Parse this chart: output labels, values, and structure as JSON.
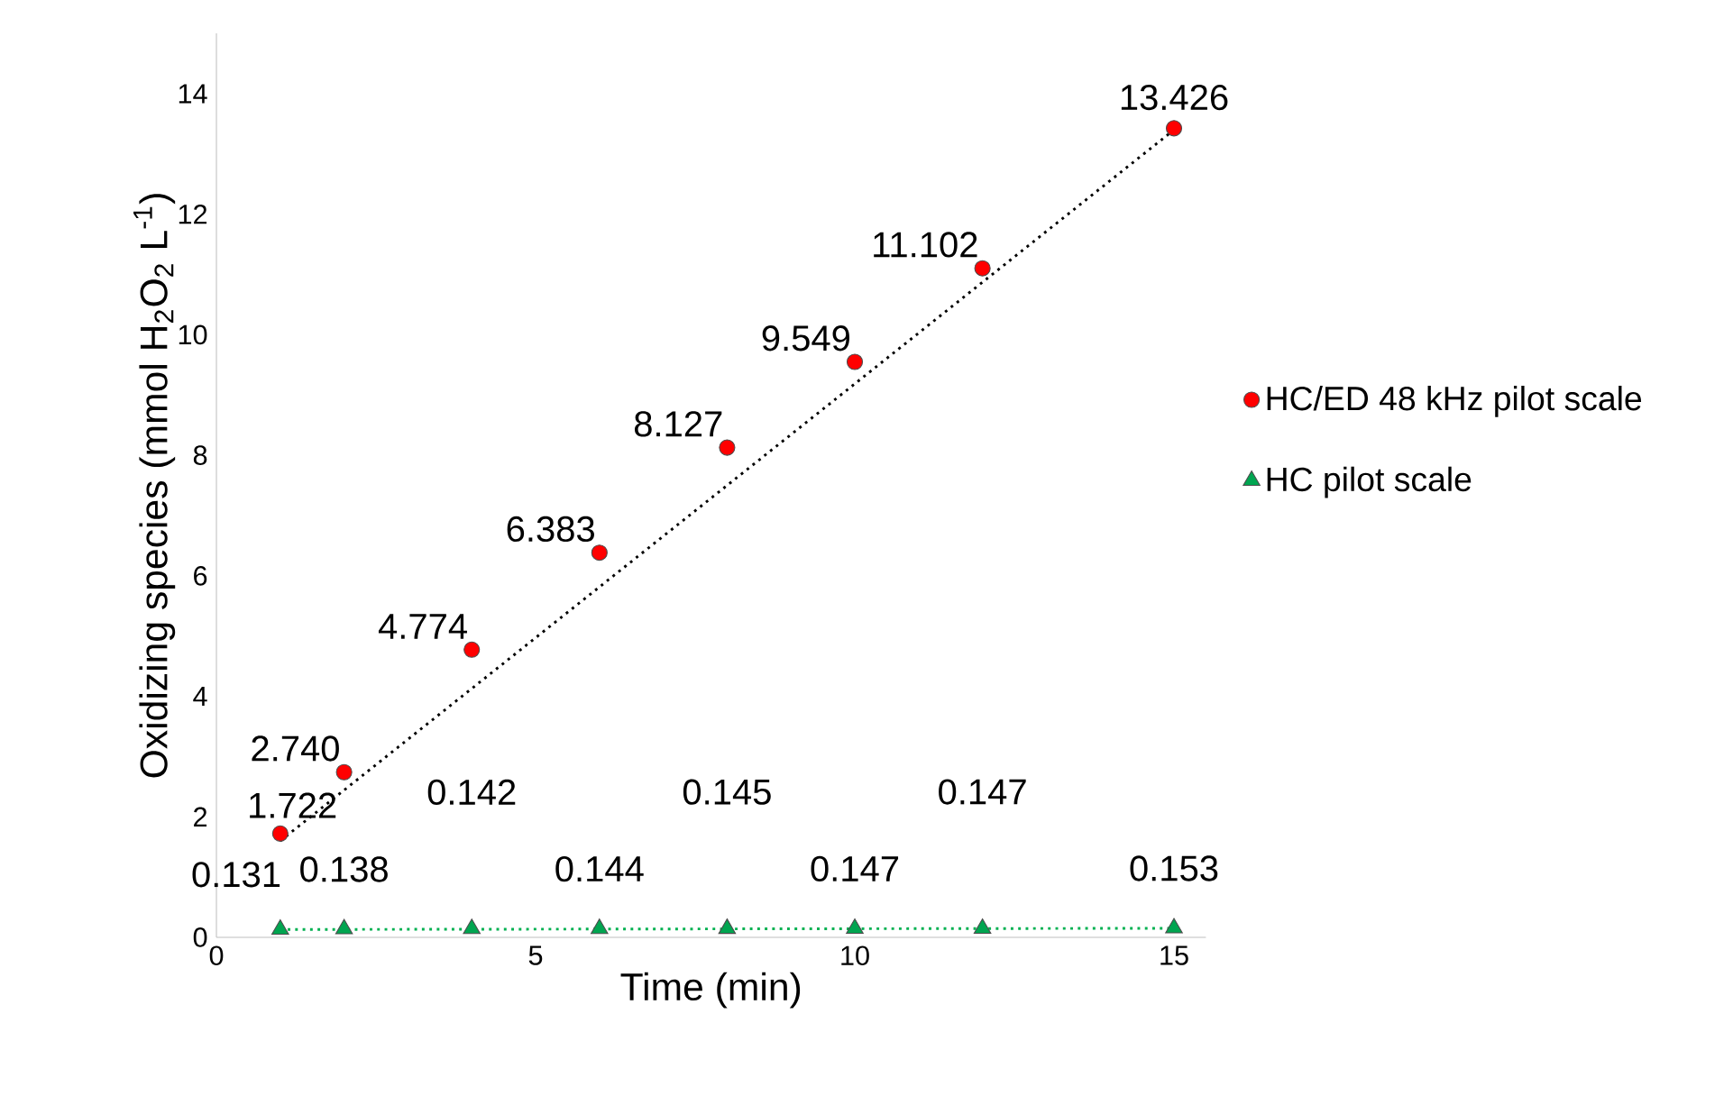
{
  "chart_data": {
    "type": "scatter",
    "xlabel": "Time (min)",
    "ylabel": "Oxidizing species (mmol H$_{2}$O$_{2}$ L$^{-1}$)",
    "xlim": [
      0,
      15.5
    ],
    "ylim": [
      0,
      15
    ],
    "xticks": [
      0,
      5,
      10,
      15
    ],
    "yticks": [
      0,
      2,
      4,
      6,
      8,
      10,
      12,
      14
    ],
    "legend": "right",
    "grid": false,
    "series": [
      {
        "name": "HC/ED 48 kHz pilot scale",
        "color": "#ff0000",
        "marker": "circle",
        "x": [
          1,
          2,
          4,
          6,
          8,
          10,
          12,
          15
        ],
        "values": [
          1.722,
          2.74,
          4.774,
          6.383,
          8.127,
          9.549,
          11.102,
          13.426
        ],
        "value_labels": [
          "1.722",
          "2.740",
          "4.774",
          "6.383",
          "8.127",
          "9.549",
          "11.102",
          "13.426"
        ]
      },
      {
        "name": "HC pilot scale",
        "color": "#00a550",
        "marker": "triangle",
        "x": [
          1,
          2,
          4,
          6,
          8,
          10,
          12,
          15
        ],
        "values": [
          0.131,
          0.138,
          0.142,
          0.144,
          0.145,
          0.147,
          0.147,
          0.153
        ],
        "value_labels": [
          "0.131",
          "0.138",
          "0.142",
          "0.144",
          "0.145",
          "0.147",
          "0.147",
          "0.153"
        ]
      },
      {
        "type": "line",
        "color": "#000000",
        "line_style": "dotted",
        "marker": "none",
        "x": [
          1,
          15
        ],
        "values": [
          1.6,
          13.4
        ]
      },
      {
        "type": "line",
        "color": "#00b050",
        "line_style": "dotted",
        "marker": "none",
        "x": [
          1,
          15
        ],
        "values": [
          0.13,
          0.15
        ]
      }
    ]
  }
}
